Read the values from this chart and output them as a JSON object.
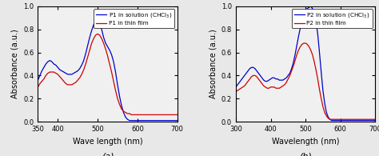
{
  "p1_blue_x": [
    350,
    355,
    360,
    365,
    370,
    375,
    380,
    385,
    390,
    395,
    400,
    405,
    410,
    415,
    420,
    425,
    430,
    435,
    440,
    445,
    450,
    455,
    460,
    465,
    470,
    475,
    480,
    485,
    490,
    495,
    500,
    505,
    510,
    515,
    520,
    525,
    530,
    535,
    540,
    545,
    550,
    555,
    560,
    565,
    570,
    575,
    580,
    585,
    590,
    595,
    600,
    620,
    640,
    660,
    680,
    700
  ],
  "p1_blue_y": [
    0.36,
    0.4,
    0.44,
    0.47,
    0.5,
    0.52,
    0.53,
    0.52,
    0.5,
    0.49,
    0.47,
    0.45,
    0.44,
    0.43,
    0.42,
    0.41,
    0.41,
    0.41,
    0.42,
    0.43,
    0.44,
    0.46,
    0.49,
    0.53,
    0.59,
    0.66,
    0.73,
    0.79,
    0.84,
    0.87,
    0.88,
    0.86,
    0.8,
    0.73,
    0.68,
    0.65,
    0.62,
    0.58,
    0.52,
    0.43,
    0.32,
    0.22,
    0.14,
    0.08,
    0.04,
    0.02,
    0.01,
    0.01,
    0.01,
    0.01,
    0.01,
    0.01,
    0.01,
    0.01,
    0.01,
    0.01
  ],
  "p1_red_x": [
    350,
    355,
    360,
    365,
    370,
    375,
    380,
    385,
    390,
    395,
    400,
    405,
    410,
    415,
    420,
    425,
    430,
    435,
    440,
    445,
    450,
    455,
    460,
    465,
    470,
    475,
    480,
    485,
    490,
    495,
    500,
    505,
    510,
    515,
    520,
    525,
    530,
    535,
    540,
    545,
    550,
    555,
    560,
    565,
    570,
    575,
    580,
    585,
    590,
    595,
    600,
    620,
    640,
    660,
    680,
    700
  ],
  "p1_red_y": [
    0.3,
    0.33,
    0.35,
    0.37,
    0.4,
    0.42,
    0.43,
    0.43,
    0.43,
    0.42,
    0.41,
    0.39,
    0.37,
    0.35,
    0.33,
    0.32,
    0.32,
    0.32,
    0.33,
    0.34,
    0.36,
    0.38,
    0.41,
    0.45,
    0.5,
    0.56,
    0.62,
    0.68,
    0.72,
    0.75,
    0.76,
    0.75,
    0.72,
    0.68,
    0.63,
    0.57,
    0.5,
    0.43,
    0.35,
    0.27,
    0.2,
    0.15,
    0.11,
    0.09,
    0.08,
    0.07,
    0.07,
    0.06,
    0.06,
    0.06,
    0.06,
    0.06,
    0.06,
    0.06,
    0.06,
    0.06
  ],
  "p2_blue_x": [
    300,
    305,
    310,
    315,
    320,
    325,
    330,
    335,
    340,
    345,
    350,
    355,
    360,
    365,
    370,
    375,
    380,
    385,
    390,
    395,
    400,
    405,
    410,
    415,
    420,
    425,
    430,
    435,
    440,
    445,
    450,
    455,
    460,
    465,
    470,
    475,
    480,
    485,
    490,
    495,
    500,
    505,
    510,
    515,
    520,
    525,
    530,
    535,
    540,
    545,
    550,
    555,
    560,
    565,
    570,
    575,
    580,
    590,
    600,
    620,
    640,
    660,
    680,
    700
  ],
  "p2_blue_y": [
    0.3,
    0.32,
    0.34,
    0.36,
    0.38,
    0.4,
    0.42,
    0.44,
    0.46,
    0.47,
    0.47,
    0.46,
    0.44,
    0.42,
    0.4,
    0.38,
    0.36,
    0.35,
    0.35,
    0.36,
    0.37,
    0.38,
    0.38,
    0.37,
    0.37,
    0.36,
    0.36,
    0.36,
    0.37,
    0.38,
    0.4,
    0.42,
    0.46,
    0.51,
    0.58,
    0.66,
    0.74,
    0.81,
    0.87,
    0.92,
    0.96,
    0.98,
    0.99,
    1.0,
    0.98,
    0.94,
    0.87,
    0.76,
    0.6,
    0.43,
    0.27,
    0.16,
    0.08,
    0.04,
    0.02,
    0.01,
    0.01,
    0.01,
    0.01,
    0.01,
    0.01,
    0.01,
    0.01,
    0.01
  ],
  "p2_red_x": [
    300,
    305,
    310,
    315,
    320,
    325,
    330,
    335,
    340,
    345,
    350,
    355,
    360,
    365,
    370,
    375,
    380,
    385,
    390,
    395,
    400,
    405,
    410,
    415,
    420,
    425,
    430,
    435,
    440,
    445,
    450,
    455,
    460,
    465,
    470,
    475,
    480,
    485,
    490,
    495,
    500,
    505,
    510,
    515,
    520,
    525,
    530,
    535,
    540,
    545,
    550,
    555,
    560,
    565,
    570,
    575,
    580,
    590,
    600,
    620,
    640,
    660,
    680,
    700
  ],
  "p2_red_y": [
    0.26,
    0.27,
    0.28,
    0.29,
    0.3,
    0.31,
    0.33,
    0.35,
    0.37,
    0.39,
    0.4,
    0.4,
    0.39,
    0.37,
    0.35,
    0.33,
    0.31,
    0.3,
    0.29,
    0.29,
    0.3,
    0.3,
    0.3,
    0.29,
    0.29,
    0.29,
    0.3,
    0.31,
    0.32,
    0.34,
    0.37,
    0.4,
    0.44,
    0.48,
    0.53,
    0.58,
    0.62,
    0.65,
    0.67,
    0.68,
    0.68,
    0.67,
    0.65,
    0.62,
    0.58,
    0.52,
    0.45,
    0.37,
    0.28,
    0.2,
    0.13,
    0.08,
    0.05,
    0.03,
    0.02,
    0.02,
    0.02,
    0.02,
    0.02,
    0.02,
    0.02,
    0.02,
    0.02,
    0.02
  ],
  "blue_color": "#0000cd",
  "red_color": "#cc0000",
  "p1_legend_blue": "P1 in solution (CHCl$_3$)",
  "p1_legend_red": "P1 in thin film",
  "p2_legend_blue": "P2 in solution (CHCl$_3$)",
  "p2_legend_red": "P2 in thin film",
  "xlabel_left": "Wave length (nm)",
  "xlabel_right": "Wavelength (nm)",
  "ylabel_left": "Absorbance (a.u.)",
  "ylabel_right": "Absorbance (a.u.)",
  "label_a": "(a)",
  "label_b": "(b)",
  "p1_xlim": [
    350,
    700
  ],
  "p2_xlim": [
    300,
    700
  ],
  "ylim": [
    0.0,
    1.0
  ],
  "p1_xticks": [
    350,
    400,
    500,
    600,
    700
  ],
  "p2_xticks": [
    300,
    400,
    500,
    600,
    700
  ],
  "yticks_left": [
    0.0,
    0.2,
    0.4,
    0.6,
    0.8,
    1.0
  ],
  "yticks_right": [
    0.0,
    0.2,
    0.4,
    0.6,
    0.8,
    1.0
  ],
  "bg_color": "#f0f0f0",
  "fig_bg": "#e8e8e8"
}
